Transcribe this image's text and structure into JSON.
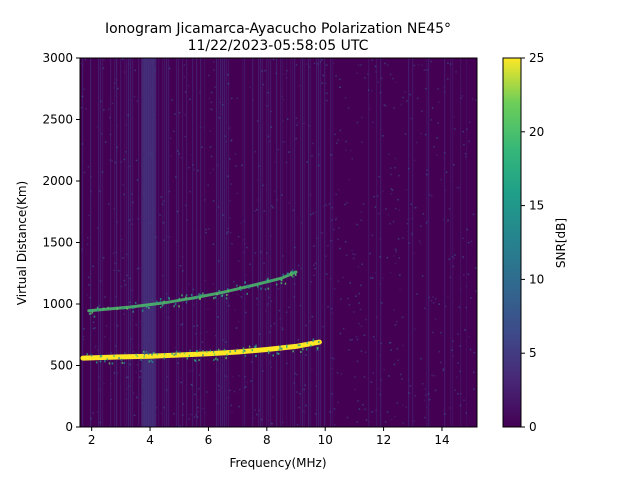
{
  "chart_data": {
    "type": "heatmap",
    "title_line1": "Ionogram Jicamarca-Ayacucho Polarization NE45°",
    "title_line2": "11/22/2023-05:58:05 UTC",
    "xlabel": "Frequency(MHz)",
    "ylabel": "Virtual Distance(Km)",
    "xlim": [
      1.6,
      15.2
    ],
    "ylim": [
      0,
      3000
    ],
    "x_ticks": [
      2,
      4,
      6,
      8,
      10,
      12,
      14
    ],
    "y_ticks": [
      0,
      500,
      1000,
      1500,
      2000,
      2500,
      3000
    ],
    "colorbar": {
      "label": "SNR[dB]",
      "range": [
        0,
        25
      ],
      "ticks": [
        0,
        5,
        10,
        15,
        20,
        25
      ],
      "colormap": "viridis"
    },
    "traces": [
      {
        "label": "lower echo trace",
        "snr_db": 25,
        "points": [
          [
            1.7,
            560
          ],
          [
            3,
            570
          ],
          [
            4,
            575
          ],
          [
            5,
            585
          ],
          [
            6,
            595
          ],
          [
            7,
            610
          ],
          [
            8,
            630
          ],
          [
            9,
            655
          ],
          [
            9.8,
            690
          ]
        ]
      },
      {
        "label": "upper echo trace",
        "snr_db": 20,
        "points": [
          [
            1.9,
            945
          ],
          [
            3.3,
            975
          ],
          [
            4.5,
            1010
          ],
          [
            5.5,
            1050
          ],
          [
            6.5,
            1095
          ],
          [
            7.5,
            1150
          ],
          [
            8.5,
            1210
          ],
          [
            9.0,
            1260
          ]
        ]
      }
    ],
    "background_snr_db": 1.5,
    "interference_band_mhz": [
      3.7,
      4.2
    ]
  }
}
